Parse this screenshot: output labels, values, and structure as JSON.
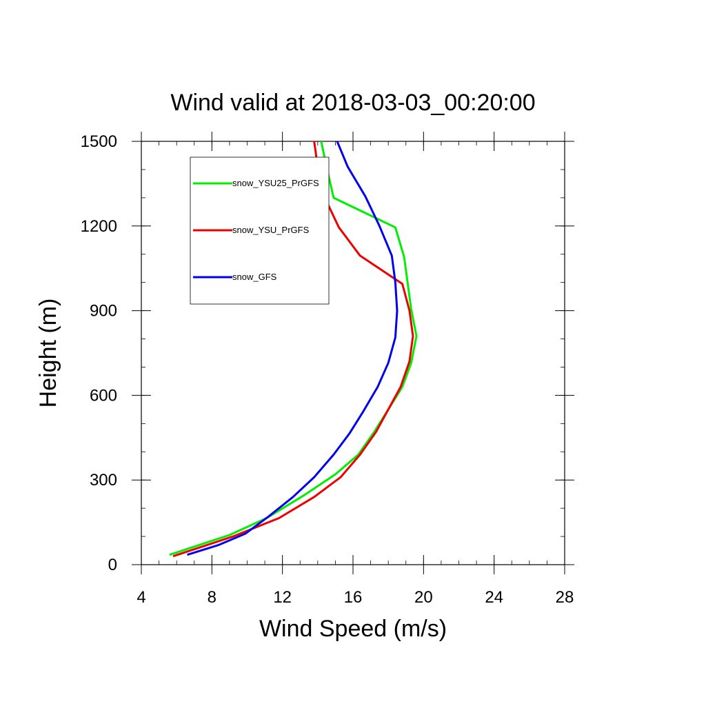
{
  "chart_data": {
    "type": "line",
    "title": "Wind valid at 2018-03-03_00:20:00",
    "xlabel": "Wind Speed (m/s)",
    "ylabel": "Height (m)",
    "xlim": [
      4,
      28
    ],
    "ylim": [
      0,
      1500
    ],
    "xticks": [
      "4",
      "8",
      "12",
      "16",
      "20",
      "24",
      "28"
    ],
    "yticks": [
      "0",
      "300",
      "600",
      "900",
      "1200",
      "1500"
    ],
    "grid": false,
    "legend_position": "upper-left inside",
    "series": [
      {
        "name": "snow_YSU25_PrGFS",
        "color": "#00ee00",
        "points": [
          [
            5.6,
            35
          ],
          [
            7.3,
            70
          ],
          [
            9.0,
            105
          ],
          [
            11.1,
            165
          ],
          [
            13.2,
            245
          ],
          [
            15.0,
            320
          ],
          [
            16.3,
            390
          ],
          [
            17.2,
            470
          ],
          [
            18.0,
            550
          ],
          [
            18.8,
            630
          ],
          [
            19.3,
            715
          ],
          [
            19.6,
            810
          ],
          [
            19.3,
            905
          ],
          [
            18.9,
            1090
          ],
          [
            18.4,
            1195
          ],
          [
            14.9,
            1300
          ],
          [
            14.5,
            1410
          ],
          [
            14.2,
            1500
          ]
        ]
      },
      {
        "name": "snow_YSU_PrGFS",
        "color": "#ee0000",
        "points": [
          [
            5.8,
            30
          ],
          [
            7.5,
            65
          ],
          [
            9.2,
            100
          ],
          [
            11.8,
            165
          ],
          [
            13.8,
            240
          ],
          [
            15.3,
            310
          ],
          [
            16.4,
            390
          ],
          [
            17.3,
            470
          ],
          [
            18.0,
            550
          ],
          [
            18.7,
            630
          ],
          [
            19.2,
            720
          ],
          [
            19.4,
            810
          ],
          [
            19.2,
            900
          ],
          [
            18.8,
            995
          ],
          [
            16.4,
            1095
          ],
          [
            15.2,
            1195
          ],
          [
            14.4,
            1300
          ],
          [
            14.0,
            1410
          ],
          [
            13.8,
            1500
          ]
        ]
      },
      {
        "name": "snow_GFS",
        "color": "#0000ee",
        "points": [
          [
            6.6,
            35
          ],
          [
            8.4,
            70
          ],
          [
            9.9,
            110
          ],
          [
            11.2,
            170
          ],
          [
            12.6,
            240
          ],
          [
            13.8,
            310
          ],
          [
            14.9,
            390
          ],
          [
            15.8,
            465
          ],
          [
            16.6,
            545
          ],
          [
            17.4,
            630
          ],
          [
            18.0,
            715
          ],
          [
            18.4,
            805
          ],
          [
            18.5,
            900
          ],
          [
            18.4,
            1000
          ],
          [
            18.2,
            1095
          ],
          [
            17.5,
            1200
          ],
          [
            16.7,
            1305
          ],
          [
            15.7,
            1410
          ],
          [
            15.1,
            1500
          ]
        ]
      }
    ]
  }
}
